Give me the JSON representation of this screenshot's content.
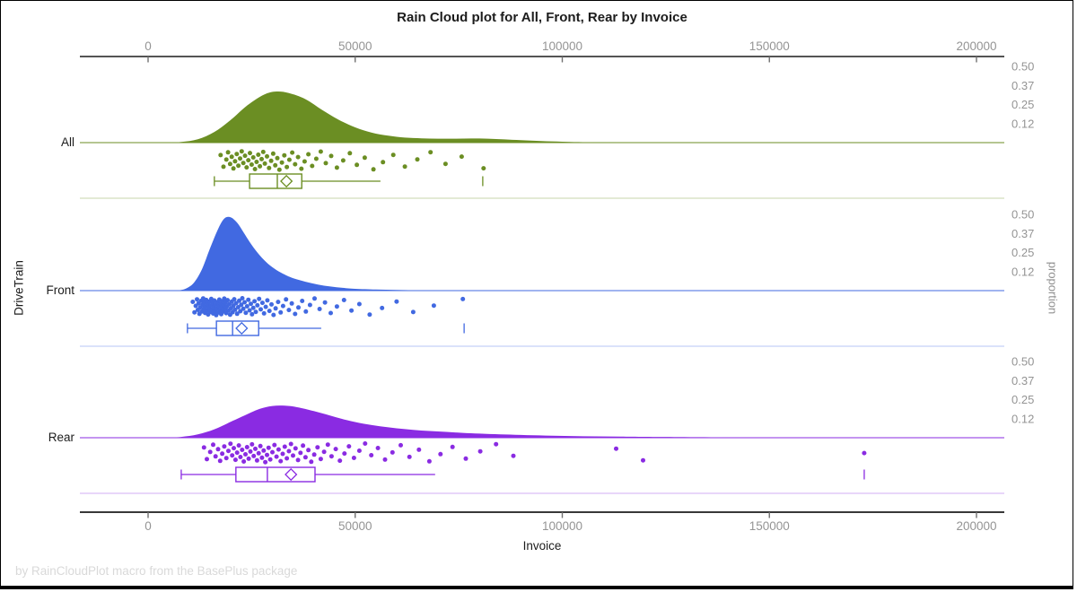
{
  "title": "Rain Cloud plot for All, Front, Rear by Invoice",
  "footer": "by RainCloudPlot macro from the BasePlus package",
  "axes": {
    "x": {
      "label": "Invoice",
      "tick_values": [
        0,
        50000,
        100000,
        150000,
        200000
      ],
      "tick_labels": [
        "0",
        "50000",
        "100000",
        "150000",
        "200000"
      ]
    },
    "y": {
      "label": "DriveTrain",
      "categories": [
        "All",
        "Front",
        "Rear"
      ]
    },
    "right": {
      "label": "proportion",
      "tick_values": [
        0.5,
        0.375,
        0.25,
        0.125
      ],
      "tick_labels": [
        "0.50",
        "0.37",
        "0.25",
        "0.12"
      ]
    }
  },
  "colors": {
    "all": "#6B8E23",
    "front": "#4169E1",
    "rear": "#8A2BE2",
    "axis_line": "#1c1c1c",
    "tick_mark": "#707070",
    "tick_text": "#949494",
    "footer_text": "#d9d9d9"
  },
  "chart_data": {
    "type": "raincloud",
    "title": "Rain Cloud plot for All, Front, Rear by Invoice",
    "x_variable": "Invoice",
    "group_variable": "DriveTrain",
    "xlim": [
      -16500,
      206800
    ],
    "proportion_ticks": [
      0.12,
      0.25,
      0.37,
      0.5
    ],
    "groups": [
      {
        "label": "All",
        "color": "#6B8E23",
        "density": [
          [
            4000,
            0
          ],
          [
            8000,
            0.004
          ],
          [
            12000,
            0.022
          ],
          [
            16000,
            0.07
          ],
          [
            20000,
            0.15
          ],
          [
            24000,
            0.245
          ],
          [
            28000,
            0.315
          ],
          [
            31000,
            0.335
          ],
          [
            34000,
            0.325
          ],
          [
            38000,
            0.285
          ],
          [
            42000,
            0.215
          ],
          [
            46000,
            0.15
          ],
          [
            50000,
            0.1
          ],
          [
            54000,
            0.065
          ],
          [
            58000,
            0.045
          ],
          [
            62000,
            0.033
          ],
          [
            66000,
            0.028
          ],
          [
            70000,
            0.026
          ],
          [
            74000,
            0.026
          ],
          [
            78000,
            0.027
          ],
          [
            82000,
            0.026
          ],
          [
            86000,
            0.021
          ],
          [
            90000,
            0.016
          ],
          [
            95000,
            0.01
          ],
          [
            100000,
            0.006
          ],
          [
            106000,
            0.003
          ],
          [
            112000,
            0.0015
          ],
          [
            120000,
            0
          ]
        ],
        "points": [
          17500,
          18200,
          18900,
          19300,
          19800,
          20200,
          20600,
          21000,
          21400,
          21800,
          22200,
          22600,
          23000,
          23400,
          23800,
          24200,
          24600,
          25000,
          25400,
          25800,
          26200,
          26600,
          27000,
          27400,
          27800,
          28200,
          28700,
          29200,
          29700,
          30200,
          30700,
          31200,
          31700,
          32300,
          32900,
          33500,
          34100,
          34800,
          35500,
          36200,
          37000,
          37800,
          38700,
          39600,
          40600,
          41700,
          42900,
          44200,
          45600,
          47100,
          48700,
          50400,
          52300,
          54400,
          56700,
          59200,
          62000,
          65000,
          68200,
          71800,
          75700,
          81000
        ],
        "box": {
          "whisker_low": 16000,
          "q1": 24500,
          "median": 31200,
          "mean": 33400,
          "q3": 37100,
          "whisker_high": 56100,
          "far_outlier": 80800
        }
      },
      {
        "label": "Front",
        "color": "#4169E1",
        "density": [
          [
            7000,
            0
          ],
          [
            9000,
            0.012
          ],
          [
            11000,
            0.05
          ],
          [
            13000,
            0.14
          ],
          [
            15000,
            0.28
          ],
          [
            17000,
            0.41
          ],
          [
            18500,
            0.475
          ],
          [
            20000,
            0.48
          ],
          [
            21500,
            0.445
          ],
          [
            23000,
            0.385
          ],
          [
            25000,
            0.3
          ],
          [
            27000,
            0.23
          ],
          [
            29000,
            0.175
          ],
          [
            31000,
            0.135
          ],
          [
            33000,
            0.105
          ],
          [
            35000,
            0.082
          ],
          [
            38000,
            0.058
          ],
          [
            41000,
            0.04
          ],
          [
            44000,
            0.027
          ],
          [
            47000,
            0.018
          ],
          [
            50000,
            0.012
          ],
          [
            55000,
            0.007
          ],
          [
            60000,
            0.004
          ],
          [
            66000,
            0.002
          ],
          [
            72000,
            0.001
          ],
          [
            80000,
            0
          ]
        ],
        "points": [
          10800,
          11200,
          11500,
          11800,
          12000,
          12200,
          12400,
          12600,
          12800,
          13000,
          13150,
          13300,
          13450,
          13600,
          13750,
          13900,
          14050,
          14200,
          14350,
          14500,
          14650,
          14800,
          14950,
          15100,
          15250,
          15400,
          15550,
          15700,
          15850,
          16000,
          16150,
          16300,
          16450,
          16600,
          16750,
          16900,
          17050,
          17200,
          17350,
          17500,
          17650,
          17800,
          17950,
          18100,
          18250,
          18400,
          18550,
          18700,
          18850,
          19000,
          19200,
          19400,
          19600,
          19800,
          20000,
          20200,
          20400,
          20600,
          20800,
          21000,
          21250,
          21500,
          21750,
          22000,
          22250,
          22500,
          22750,
          23000,
          23300,
          23600,
          23900,
          24200,
          24500,
          24800,
          25100,
          25400,
          25700,
          26000,
          26400,
          26800,
          27200,
          27600,
          28000,
          28400,
          28800,
          29300,
          29800,
          30300,
          30800,
          31400,
          32000,
          32600,
          33300,
          34000,
          34700,
          35500,
          36300,
          37200,
          38100,
          39100,
          40200,
          41400,
          42700,
          44100,
          45600,
          47300,
          49100,
          51000,
          53500,
          56500,
          60000,
          64000,
          69000,
          76000
        ],
        "box": {
          "whisker_low": 9500,
          "q1": 16500,
          "median": 20400,
          "mean": 22600,
          "q3": 26700,
          "whisker_high": 41800,
          "far_outlier": 76300
        }
      },
      {
        "label": "Rear",
        "color": "#8A2BE2",
        "density": [
          [
            4000,
            0
          ],
          [
            8000,
            0.005
          ],
          [
            12000,
            0.022
          ],
          [
            16000,
            0.055
          ],
          [
            20000,
            0.105
          ],
          [
            24000,
            0.155
          ],
          [
            27000,
            0.19
          ],
          [
            30000,
            0.208
          ],
          [
            33000,
            0.21
          ],
          [
            36000,
            0.2
          ],
          [
            40000,
            0.175
          ],
          [
            44000,
            0.145
          ],
          [
            48000,
            0.115
          ],
          [
            52000,
            0.092
          ],
          [
            56000,
            0.075
          ],
          [
            60000,
            0.062
          ],
          [
            64000,
            0.052
          ],
          [
            68000,
            0.044
          ],
          [
            72000,
            0.038
          ],
          [
            76000,
            0.032
          ],
          [
            80000,
            0.027
          ],
          [
            85000,
            0.022
          ],
          [
            90000,
            0.018
          ],
          [
            96000,
            0.014
          ],
          [
            102000,
            0.011
          ],
          [
            108000,
            0.009
          ],
          [
            114000,
            0.0075
          ],
          [
            120000,
            0.006
          ],
          [
            128000,
            0.0045
          ],
          [
            136000,
            0.003
          ],
          [
            145000,
            0.002
          ],
          [
            155000,
            0.0013
          ],
          [
            165000,
            0.0008
          ],
          [
            175000,
            0.0004
          ],
          [
            185000,
            0
          ]
        ],
        "points": [
          13500,
          14200,
          15000,
          15700,
          16300,
          16900,
          17400,
          17900,
          18400,
          18900,
          19400,
          19900,
          20300,
          20700,
          21100,
          21500,
          21900,
          22300,
          22700,
          23100,
          23500,
          23900,
          24300,
          24700,
          25100,
          25500,
          25900,
          26300,
          26700,
          27100,
          27500,
          27900,
          28300,
          28700,
          29100,
          29500,
          30000,
          30500,
          31000,
          31500,
          32000,
          32500,
          33000,
          33500,
          34000,
          34500,
          35000,
          35600,
          36200,
          36800,
          37400,
          38000,
          38700,
          39400,
          40100,
          40900,
          41700,
          42500,
          43400,
          44300,
          45300,
          46300,
          47400,
          48500,
          49700,
          51000,
          52400,
          53900,
          55500,
          57200,
          59000,
          61000,
          63100,
          65400,
          67900,
          70600,
          73500,
          76700,
          80200,
          84000,
          88200,
          113000,
          119500,
          172900
        ],
        "box": {
          "whisker_low": 8000,
          "q1": 21200,
          "median": 28800,
          "mean": 34500,
          "q3": 40300,
          "whisker_high": 69300,
          "far_outlier": 172900
        }
      }
    ]
  }
}
